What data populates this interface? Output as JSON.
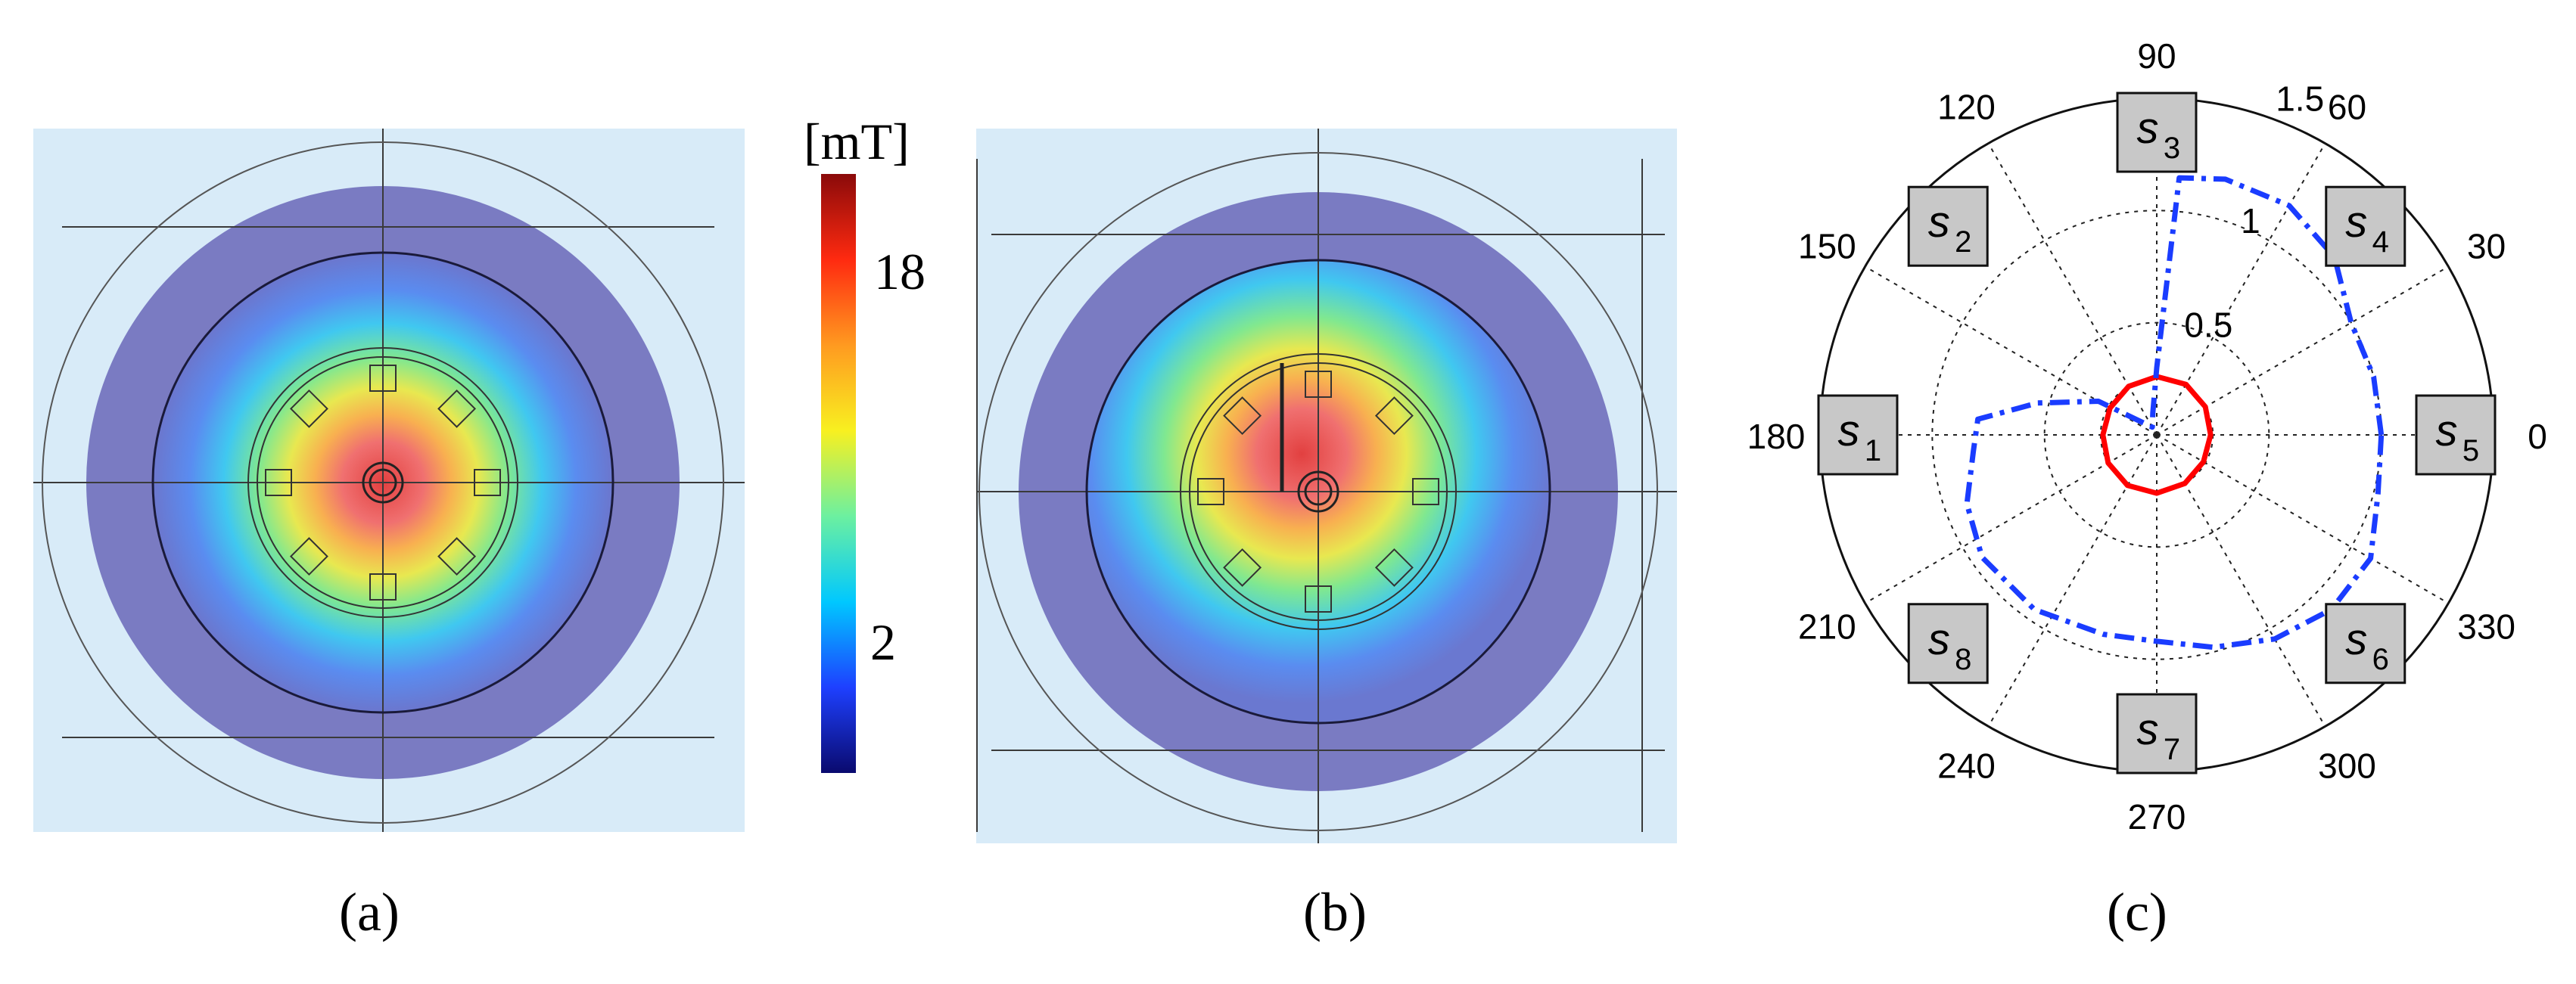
{
  "figure": {
    "panel_a": {
      "caption": "(a)"
    },
    "panel_b": {
      "caption": "(b)"
    },
    "panel_c": {
      "caption": "(c)"
    },
    "colorbar": {
      "unit": "[mT]",
      "ticks": [
        "18",
        "2"
      ],
      "colors": [
        "#0a0a6e",
        "#1e40ff",
        "#00c8ff",
        "#6cf0a0",
        "#f8f020",
        "#ff9a20",
        "#ff2a10",
        "#8a0a0a"
      ]
    },
    "colors": {
      "outer_disk": "#7a7bc2",
      "background": "#d8ebf8",
      "grid_line": "#3a3a3a",
      "solid_series": "#ff0000",
      "dashdot_series": "#1a3cff"
    }
  },
  "chart_data": {
    "type": "polar",
    "angle_ticks": [
      "0",
      "30",
      "60",
      "90",
      "120",
      "150",
      "180",
      "210",
      "240",
      "270",
      "300",
      "330"
    ],
    "radial_ticks": [
      "0.5",
      "1",
      "1.5"
    ],
    "r_max": 1.5,
    "sensors": [
      {
        "label": "s",
        "sub": "1",
        "angle": 180
      },
      {
        "label": "s",
        "sub": "2",
        "angle": 135
      },
      {
        "label": "s",
        "sub": "3",
        "angle": 90
      },
      {
        "label": "s",
        "sub": "4",
        "angle": 45
      },
      {
        "label": "s",
        "sub": "5",
        "angle": 0
      },
      {
        "label": "s",
        "sub": "6",
        "angle": 315
      },
      {
        "label": "s",
        "sub": "7",
        "angle": 270
      },
      {
        "label": "s",
        "sub": "8",
        "angle": 225
      }
    ],
    "series": [
      {
        "style": "solid",
        "color": "#ff0000",
        "points": [
          [
            0,
            0.24
          ],
          [
            30,
            0.25
          ],
          [
            60,
            0.26
          ],
          [
            90,
            0.26
          ],
          [
            120,
            0.25
          ],
          [
            150,
            0.24
          ],
          [
            180,
            0.24
          ],
          [
            210,
            0.25
          ],
          [
            240,
            0.26
          ],
          [
            270,
            0.26
          ],
          [
            300,
            0.25
          ],
          [
            330,
            0.24
          ]
        ]
      },
      {
        "style": "dashdot",
        "color": "#1a3cff",
        "points": [
          [
            0,
            1.0
          ],
          [
            15,
            1.0
          ],
          [
            30,
            1.0
          ],
          [
            45,
            1.12
          ],
          [
            60,
            1.18
          ],
          [
            75,
            1.18
          ],
          [
            85,
            1.15
          ],
          [
            90,
            0.3
          ],
          [
            100,
            0.1
          ],
          [
            120,
            0.04
          ],
          [
            150,
            0.3
          ],
          [
            165,
            0.55
          ],
          [
            175,
            0.8
          ],
          [
            185,
            0.82
          ],
          [
            200,
            0.9
          ],
          [
            215,
            0.95
          ],
          [
            235,
            0.95
          ],
          [
            255,
            0.92
          ],
          [
            270,
            0.92
          ],
          [
            285,
            0.98
          ],
          [
            300,
            1.05
          ],
          [
            315,
            1.1
          ],
          [
            330,
            1.1
          ],
          [
            345,
            1.02
          ],
          [
            360,
            1.0
          ]
        ]
      }
    ]
  }
}
